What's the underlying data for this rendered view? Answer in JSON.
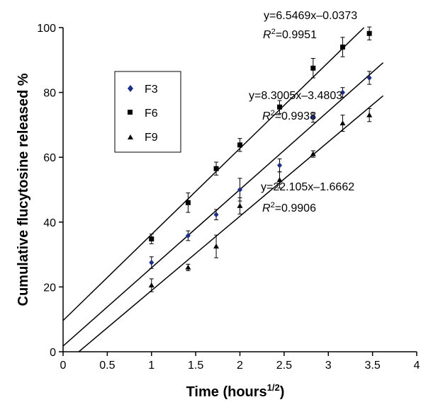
{
  "chart_data": {
    "type": "scatter",
    "xlabel_main": "Time (hours",
    "xlabel_sup": "1/2",
    "xlabel_end": ")",
    "ylabel": "Cumulative flucytosine released %",
    "xlim": [
      0,
      4
    ],
    "ylim": [
      0,
      100
    ],
    "x_ticks": [
      "0",
      "0.5",
      "1",
      "1.5",
      "2",
      "2.5",
      "3",
      "3.5",
      "4"
    ],
    "y_ticks": [
      "0",
      "20",
      "40",
      "60",
      "80",
      "100"
    ],
    "legend": {
      "placement": "upper-left",
      "entries": [
        "F3",
        "F6",
        "F9"
      ]
    },
    "x": [
      1.0,
      1.414,
      1.732,
      2.0,
      2.449,
      2.828,
      3.162,
      3.464
    ],
    "series": [
      {
        "name": "F3",
        "marker": "diamond",
        "color": "#1a2f8c",
        "values": [
          27.5,
          35.8,
          42.3,
          50.0,
          57.5,
          72.3,
          80.0,
          84.5
        ],
        "errors": [
          1.8,
          1.5,
          1.6,
          3.5,
          2.0,
          1.5,
          1.5,
          2.0
        ],
        "fit": {
          "slope": 8.3005,
          "intercept": -3.4803
        }
      },
      {
        "name": "F6",
        "marker": "square",
        "color": "#000000",
        "values": [
          34.8,
          46.0,
          56.5,
          63.8,
          75.5,
          87.5,
          94.0,
          98.2
        ],
        "errors": [
          1.5,
          3.0,
          2.0,
          2.0,
          2.0,
          3.0,
          3.0,
          2.0
        ],
        "fit": {
          "slope": 6.5469,
          "intercept": -0.0373
        }
      },
      {
        "name": "F9",
        "marker": "triangle",
        "color": "#000000",
        "values": [
          20.5,
          26.0,
          32.5,
          45.0,
          53.0,
          61.0,
          70.5,
          73.0
        ],
        "errors": [
          2.0,
          1.0,
          3.5,
          2.5,
          2.5,
          1.0,
          2.5,
          2.0
        ],
        "fit": {
          "slope": 22.105,
          "intercept": -1.6662
        }
      }
    ],
    "annotations": [
      {
        "eq": "y=6.5469x–0.0373",
        "r2_prefix": "R",
        "r2_sup": "2",
        "r2_value": "=0.9951"
      },
      {
        "eq": "y=8.3005x–3.4803",
        "r2_prefix": "R",
        "r2_sup": "2",
        "r2_value": "=0.9938"
      },
      {
        "eq": "y=22.105x–1.6662",
        "r2_prefix": "R",
        "r2_sup": "2",
        "r2_value": "=0.9906"
      }
    ]
  }
}
